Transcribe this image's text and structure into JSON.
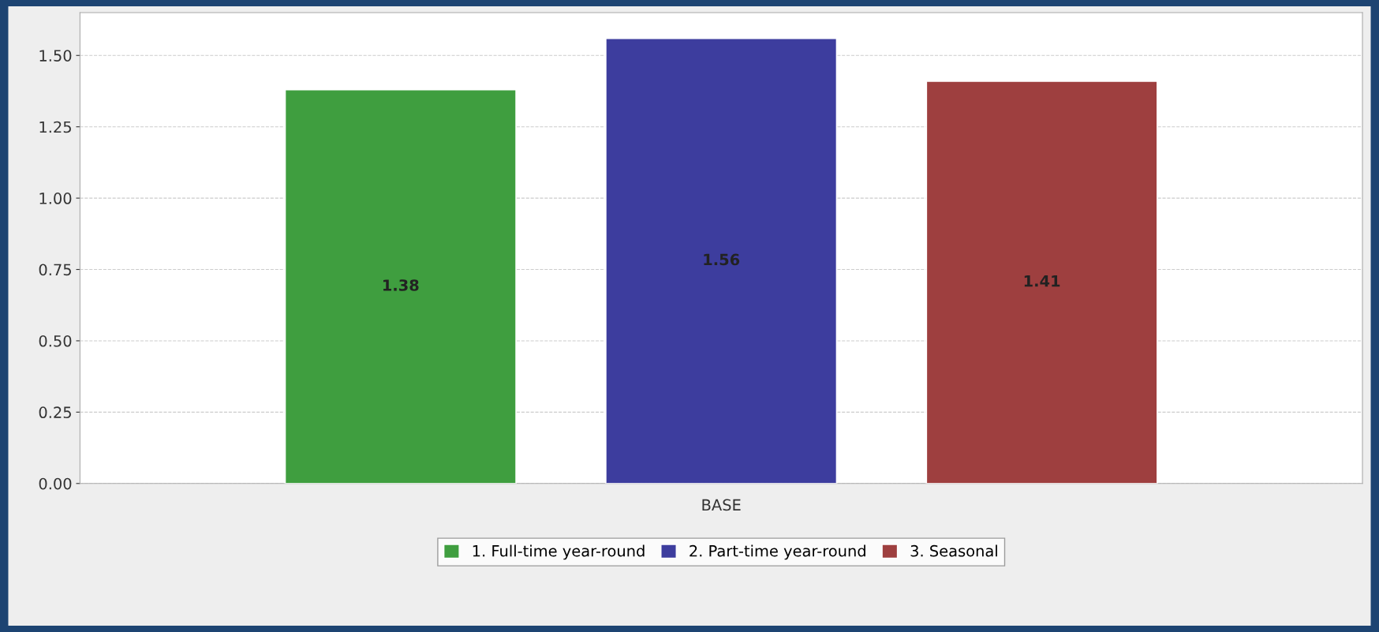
{
  "chart_data": {
    "type": "bar",
    "categories": [
      "BASE"
    ],
    "series": [
      {
        "name": "1. Full-time year-round",
        "color": "#3f9e3f",
        "values": [
          1.38
        ]
      },
      {
        "name": "2. Part-time year-round",
        "color": "#3d3d9e",
        "values": [
          1.56
        ]
      },
      {
        "name": "3. Seasonal",
        "color": "#9e3f3f",
        "values": [
          1.41
        ]
      }
    ],
    "ylim": [
      0,
      1.65
    ],
    "yticks": [
      {
        "value": 0,
        "label": "0.00"
      },
      {
        "value": 0.25,
        "label": "0.25"
      },
      {
        "value": 0.5,
        "label": "0.50"
      },
      {
        "value": 0.75,
        "label": "0.75"
      },
      {
        "value": 1.0,
        "label": "1.00"
      },
      {
        "value": 1.25,
        "label": "1.25"
      },
      {
        "value": 1.5,
        "label": "1.50"
      }
    ],
    "grid": "y",
    "legend": "bottom",
    "data_labels": true
  }
}
